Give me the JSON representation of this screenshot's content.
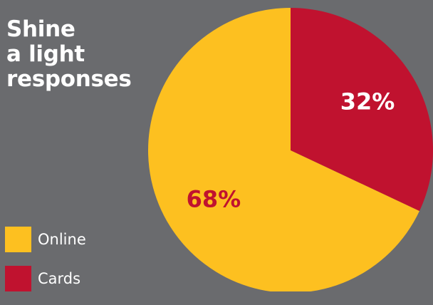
{
  "chart_data": {
    "type": "pie",
    "title_lines": [
      "Shine",
      "a light",
      "responses"
    ],
    "slices": [
      {
        "label": "Cards",
        "value": 32,
        "value_label": "32%",
        "color": "#c0122f",
        "label_color": "#ffffff"
      },
      {
        "label": "Online",
        "value": 68,
        "value_label": "68%",
        "color": "#fdc020",
        "label_color": "#c0122f"
      }
    ],
    "legend": {
      "placement": "bottom-left",
      "entries": [
        {
          "label": "Online",
          "color": "#fdc020"
        },
        {
          "label": "Cards",
          "color": "#c0122f"
        }
      ]
    }
  }
}
